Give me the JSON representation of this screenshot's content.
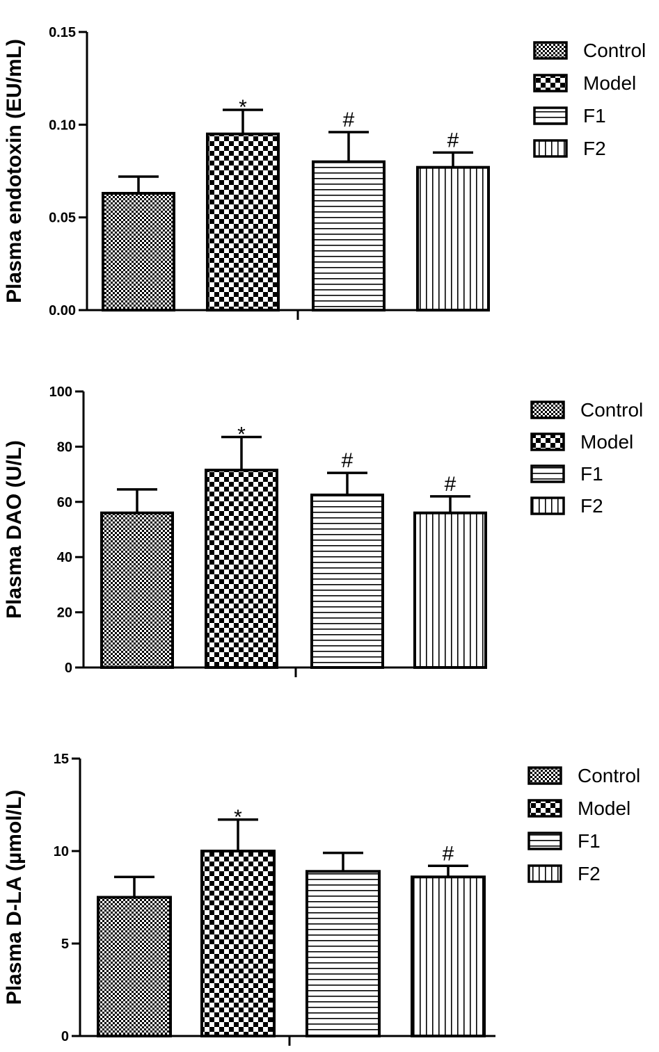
{
  "chart_data": [
    {
      "type": "bar",
      "categories": [
        "Control",
        "Model",
        "F1",
        "F2"
      ],
      "values": [
        0.063,
        0.095,
        0.08,
        0.077
      ],
      "errors": [
        0.009,
        0.013,
        0.016,
        0.008
      ],
      "annotations": [
        "",
        "*",
        "#",
        "#"
      ],
      "ylabel": "Plasma endotoxin (EU/mL)",
      "ylim": [
        0,
        0.15
      ],
      "yticks": [
        "0.00",
        "0.05",
        "0.10",
        "0.15"
      ],
      "legend": [
        "Control",
        "Model",
        "F1",
        "F2"
      ],
      "legend_position": "right",
      "patterns": [
        "fine-check",
        "coarse-check",
        "horizontal",
        "vertical"
      ],
      "grid": false
    },
    {
      "type": "bar",
      "categories": [
        "Control",
        "Model",
        "F1",
        "F2"
      ],
      "values": [
        56,
        71.5,
        62.5,
        56
      ],
      "errors": [
        8.5,
        12,
        8,
        6
      ],
      "annotations": [
        "",
        "*",
        "#",
        "#"
      ],
      "ylabel": "Plasma DAO (U/L)",
      "ylim": [
        0,
        100
      ],
      "yticks": [
        "0",
        "20",
        "40",
        "60",
        "80",
        "100"
      ],
      "legend": [
        "Control",
        "Model",
        "F1",
        "F2"
      ],
      "legend_position": "right",
      "patterns": [
        "fine-check",
        "coarse-check",
        "horizontal",
        "vertical"
      ],
      "grid": false
    },
    {
      "type": "bar",
      "categories": [
        "Control",
        "Model",
        "F1",
        "F2"
      ],
      "values": [
        7.5,
        10,
        8.9,
        8.6
      ],
      "errors": [
        1.1,
        1.7,
        1.0,
        0.6
      ],
      "annotations": [
        "",
        "*",
        "",
        "#"
      ],
      "ylabel": "Plasma D-LA (µmol/L)",
      "ylim": [
        0,
        15
      ],
      "yticks": [
        "0",
        "5",
        "10",
        "15"
      ],
      "legend": [
        "Control",
        "Model",
        "F1",
        "F2"
      ],
      "legend_position": "right",
      "patterns": [
        "fine-check",
        "coarse-check",
        "horizontal",
        "vertical"
      ],
      "grid": false
    }
  ]
}
